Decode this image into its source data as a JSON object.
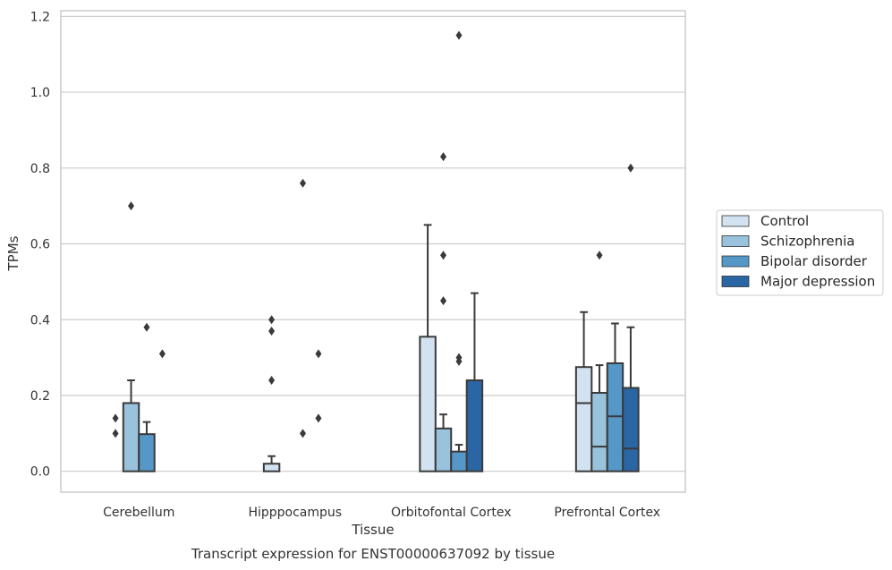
{
  "chart_data": {
    "type": "box",
    "title": "",
    "xlabel": "Tissue",
    "ylabel": "TPMs",
    "caption": "Transcript expression for ENST00000637092 by tissue",
    "ylim": [
      -0.055,
      1.215
    ],
    "yticks": [
      "0.0",
      "0.2",
      "0.4",
      "0.6",
      "0.8",
      "1.0",
      "1.2"
    ],
    "ytick_values": [
      0.0,
      0.2,
      0.4,
      0.6,
      0.8,
      1.0,
      1.2
    ],
    "grid": true,
    "legend_placement": "right",
    "categories": [
      "Cerebellum",
      "Hipppocampus",
      "Orbitofontal Cortex",
      "Prefrontal Cortex"
    ],
    "series": [
      {
        "name": "Control",
        "color": "#d2e2f0",
        "boxes": [
          {
            "q1": 0.0,
            "median": 0.0,
            "q3": 0.0,
            "whisker_low": 0.0,
            "whisker_high": 0.0,
            "outliers": [
              0.1,
              0.14
            ]
          },
          {
            "q1": 0.0,
            "median": 0.0,
            "q3": 0.02,
            "whisker_low": 0.0,
            "whisker_high": 0.04,
            "outliers": [
              0.24,
              0.37,
              0.4
            ]
          },
          {
            "q1": 0.0,
            "median": 0.0,
            "q3": 0.355,
            "whisker_low": 0.0,
            "whisker_high": 0.65,
            "outliers": []
          },
          {
            "q1": 0.0,
            "median": 0.18,
            "q3": 0.275,
            "whisker_low": 0.0,
            "whisker_high": 0.42,
            "outliers": []
          }
        ]
      },
      {
        "name": "Schizophrenia",
        "color": "#99c2dc",
        "boxes": [
          {
            "q1": 0.0,
            "median": 0.0,
            "q3": 0.18,
            "whisker_low": 0.0,
            "whisker_high": 0.24,
            "outliers": [
              0.7
            ]
          },
          {
            "q1": 0.0,
            "median": 0.0,
            "q3": 0.0,
            "whisker_low": 0.0,
            "whisker_high": 0.0,
            "outliers": []
          },
          {
            "q1": 0.0,
            "median": 0.0,
            "q3": 0.113,
            "whisker_low": 0.0,
            "whisker_high": 0.15,
            "outliers": [
              0.45,
              0.57,
              0.83
            ]
          },
          {
            "q1": 0.0,
            "median": 0.065,
            "q3": 0.207,
            "whisker_low": 0.0,
            "whisker_high": 0.28,
            "outliers": [
              0.57
            ]
          }
        ]
      },
      {
        "name": "Bipolar disorder",
        "color": "#5598c8",
        "boxes": [
          {
            "q1": 0.0,
            "median": 0.0,
            "q3": 0.098,
            "whisker_low": 0.0,
            "whisker_high": 0.13,
            "outliers": [
              0.38
            ]
          },
          {
            "q1": 0.0,
            "median": 0.0,
            "q3": 0.0,
            "whisker_low": 0.0,
            "whisker_high": 0.0,
            "outliers": [
              0.1,
              0.76
            ]
          },
          {
            "q1": 0.0,
            "median": 0.0,
            "q3": 0.052,
            "whisker_low": 0.0,
            "whisker_high": 0.07,
            "outliers": [
              0.29,
              0.3,
              1.15
            ]
          },
          {
            "q1": 0.0,
            "median": 0.145,
            "q3": 0.285,
            "whisker_low": 0.0,
            "whisker_high": 0.39,
            "outliers": []
          }
        ]
      },
      {
        "name": "Major depression",
        "color": "#2a66a3",
        "boxes": [
          {
            "q1": 0.0,
            "median": 0.0,
            "q3": 0.0,
            "whisker_low": 0.0,
            "whisker_high": 0.0,
            "outliers": [
              0.31
            ]
          },
          {
            "q1": 0.0,
            "median": 0.0,
            "q3": 0.0,
            "whisker_low": 0.0,
            "whisker_high": 0.0,
            "outliers": [
              0.14,
              0.31
            ]
          },
          {
            "q1": 0.0,
            "median": 0.0,
            "q3": 0.24,
            "whisker_low": 0.0,
            "whisker_high": 0.47,
            "outliers": []
          },
          {
            "q1": 0.0,
            "median": 0.06,
            "q3": 0.22,
            "whisker_low": 0.0,
            "whisker_high": 0.38,
            "outliers": [
              0.8
            ]
          }
        ]
      }
    ]
  }
}
